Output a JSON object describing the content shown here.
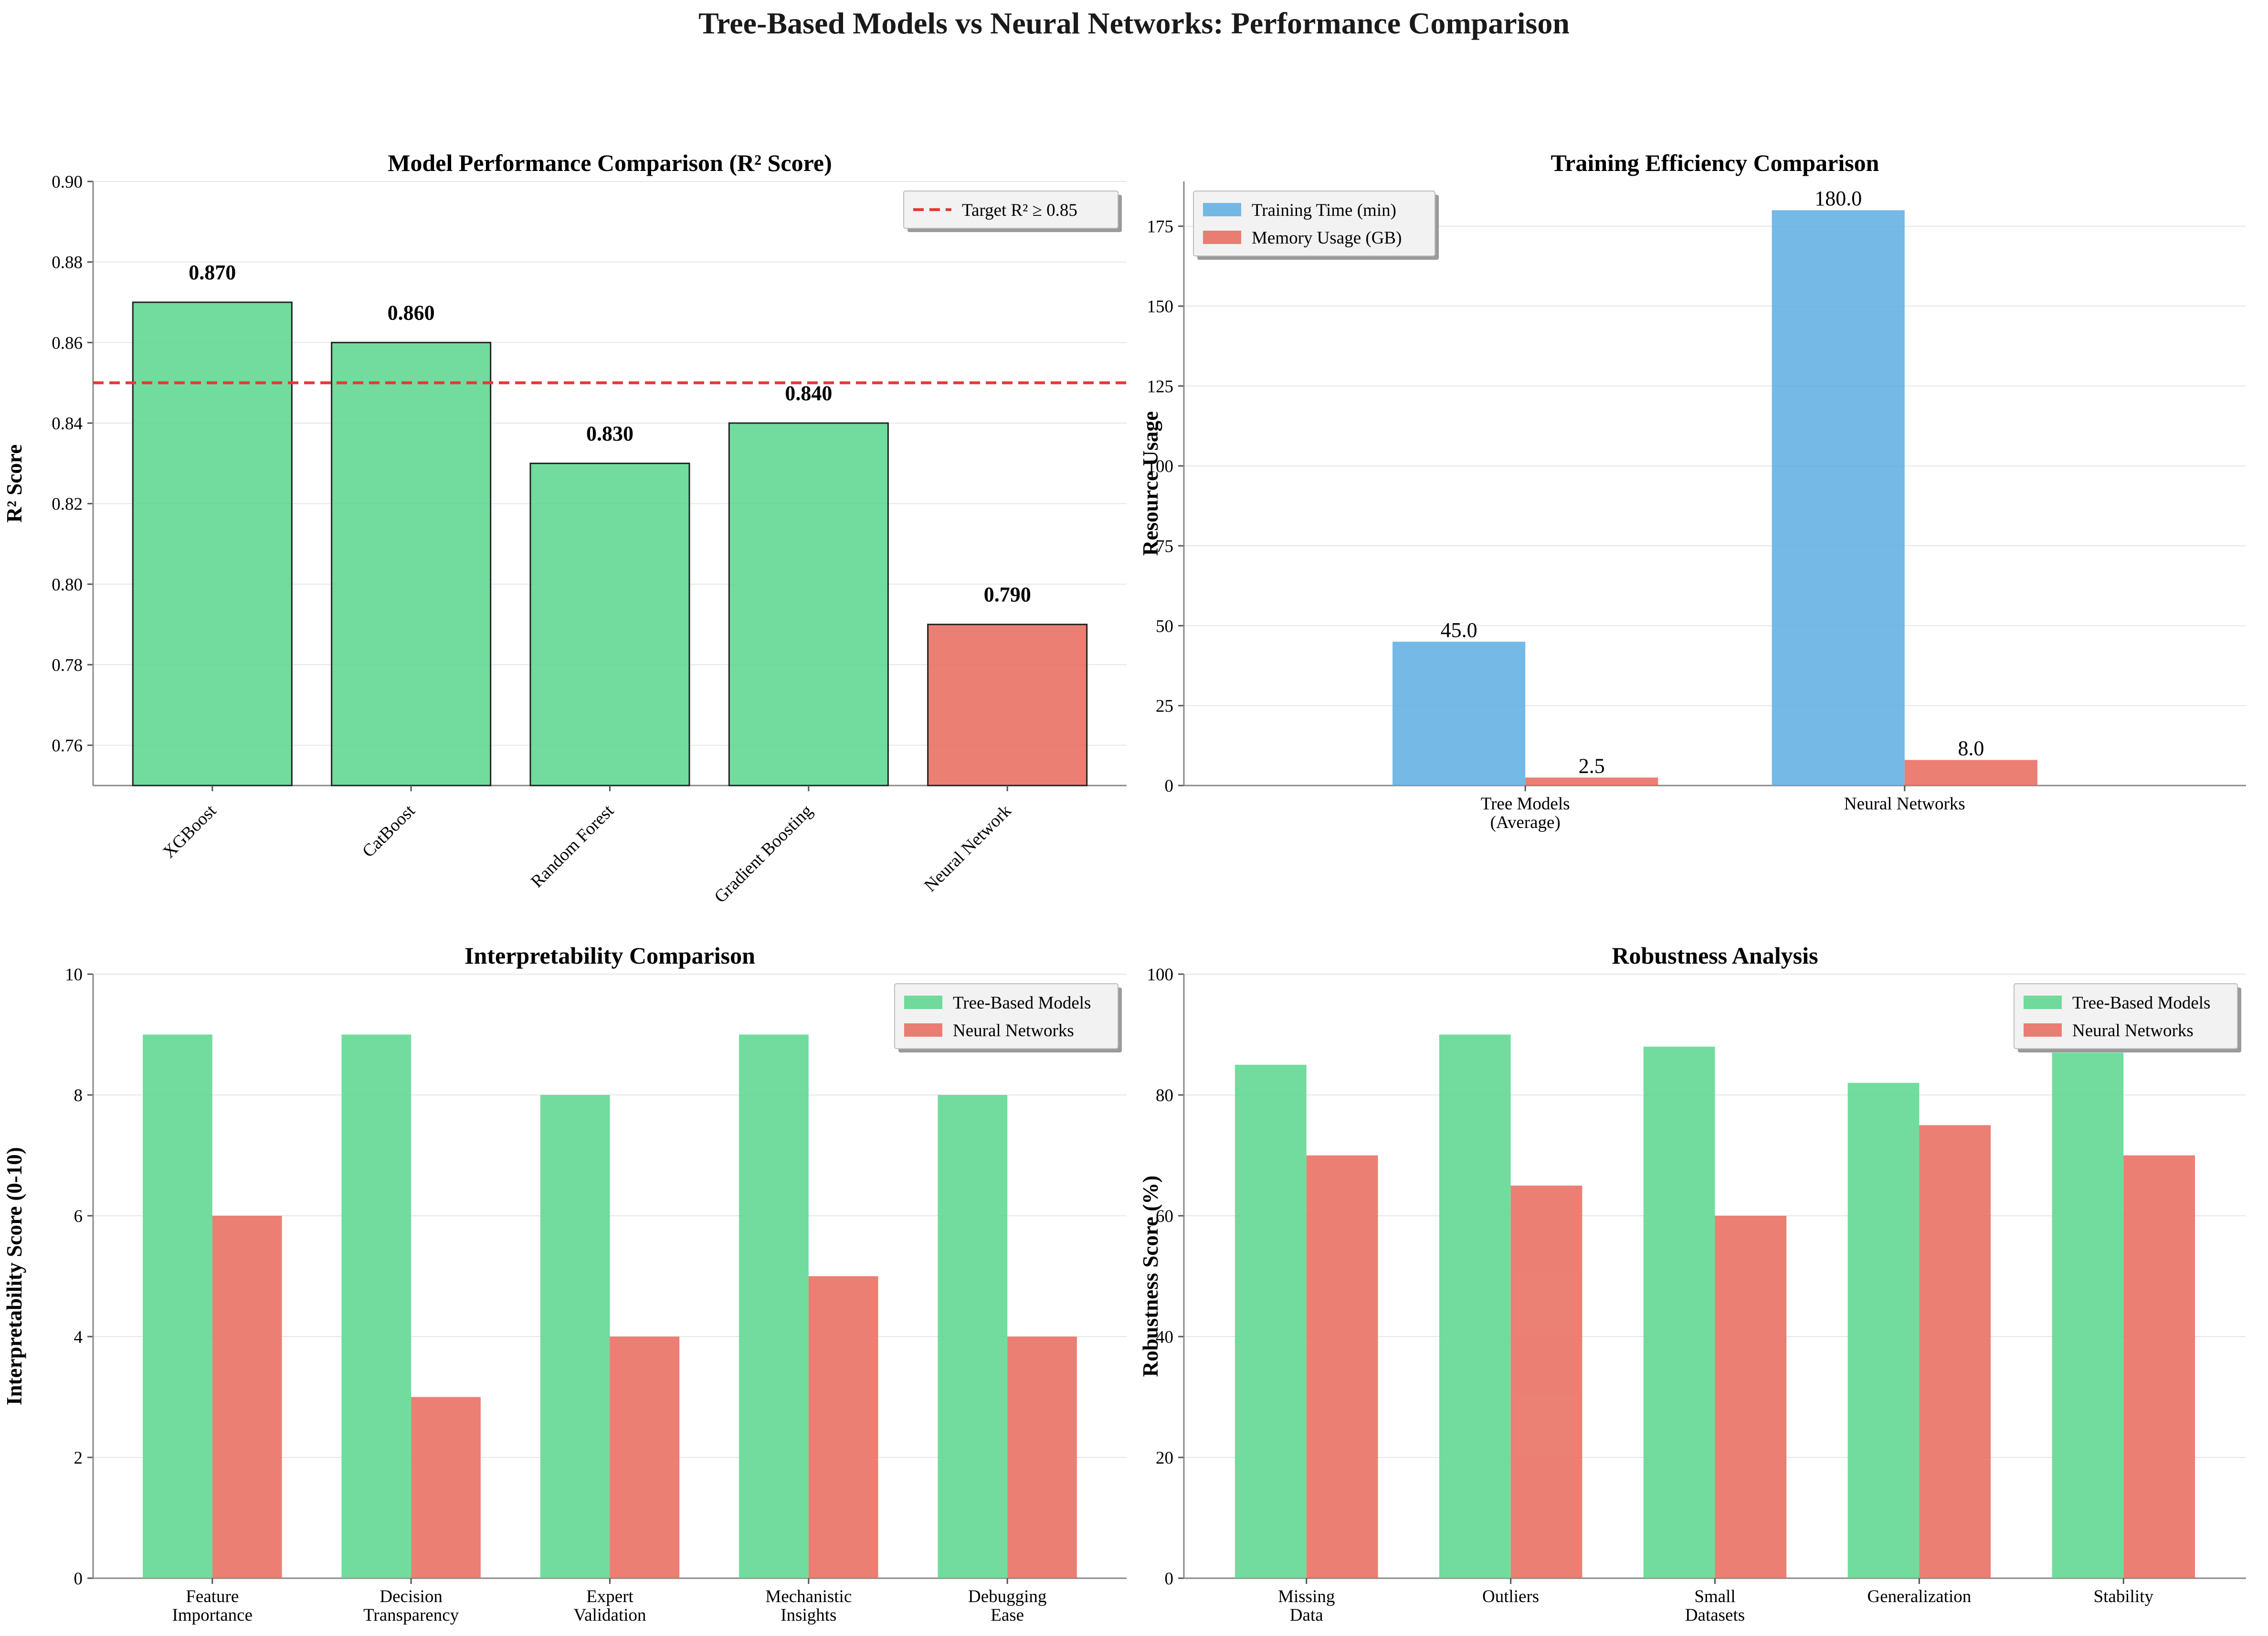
{
  "title": "Tree-Based Models vs Neural Networks: Performance Comparison",
  "colors": {
    "green": "#58d68d",
    "red": "#e8695c",
    "blue": "#5dade2",
    "target": "#e53935"
  },
  "chart_data": [
    {
      "type": "bar",
      "title": "Model Performance Comparison (R² Score)",
      "ylabel": "R² Score",
      "xlabel": "",
      "categories": [
        "XGBoost",
        "CatBoost",
        "Random Forest",
        "Gradient Boosting",
        "Neural Network"
      ],
      "values": [
        0.87,
        0.86,
        0.83,
        0.84,
        0.79
      ],
      "value_labels": [
        "0.870",
        "0.860",
        "0.830",
        "0.840",
        "0.790"
      ],
      "bar_colors": [
        "green",
        "green",
        "green",
        "green",
        "red"
      ],
      "ylim": [
        0.75,
        0.9
      ],
      "yticks": [
        0.76,
        0.78,
        0.8,
        0.82,
        0.84,
        0.86,
        0.88,
        0.9
      ],
      "ytick_labels": [
        "0.76",
        "0.78",
        "0.80",
        "0.82",
        "0.84",
        "0.86",
        "0.88",
        "0.90"
      ],
      "reference_line": {
        "y": 0.85,
        "label": "Target R² ≥ 0.85"
      },
      "legend": "top-right",
      "grid": true
    },
    {
      "type": "bar",
      "title": "Training Efficiency Comparison",
      "ylabel": "Resource Usage",
      "xlabel": "",
      "categories": [
        "Tree Models\n(Average)",
        "Neural Networks"
      ],
      "series": [
        {
          "name": "Training Time (min)",
          "color": "blue",
          "values": [
            45.0,
            180.0
          ],
          "value_labels": [
            "45.0",
            "180.0"
          ]
        },
        {
          "name": "Memory Usage (GB)",
          "color": "red",
          "values": [
            2.5,
            8.0
          ],
          "value_labels": [
            "2.5",
            "8.0"
          ]
        }
      ],
      "ylim": [
        0,
        189
      ],
      "yticks": [
        0,
        25,
        50,
        75,
        100,
        125,
        150,
        175
      ],
      "ytick_labels": [
        "0",
        "25",
        "50",
        "75",
        "100",
        "125",
        "150",
        "175"
      ],
      "legend": "top-left",
      "grid": true
    },
    {
      "type": "bar",
      "title": "Interpretability Comparison",
      "ylabel": "Interpretability Score (0-10)",
      "xlabel": "",
      "categories": [
        "Feature\nImportance",
        "Decision\nTransparency",
        "Expert\nValidation",
        "Mechanistic\nInsights",
        "Debugging\nEase"
      ],
      "series": [
        {
          "name": "Tree-Based Models",
          "color": "green",
          "values": [
            9,
            9,
            8,
            9,
            8
          ]
        },
        {
          "name": "Neural Networks",
          "color": "red",
          "values": [
            6,
            3,
            4,
            5,
            4
          ]
        }
      ],
      "ylim": [
        0,
        10
      ],
      "yticks": [
        0,
        2,
        4,
        6,
        8,
        10
      ],
      "ytick_labels": [
        "0",
        "2",
        "4",
        "6",
        "8",
        "10"
      ],
      "legend": "top-right",
      "grid": true
    },
    {
      "type": "bar",
      "title": "Robustness Analysis",
      "ylabel": "Robustness Score (%)",
      "xlabel": "",
      "categories": [
        "Missing\nData",
        "Outliers",
        "Small\nDatasets",
        "Generalization",
        "Stability"
      ],
      "series": [
        {
          "name": "Tree-Based Models",
          "color": "green",
          "values": [
            85,
            90,
            88,
            82,
            87
          ]
        },
        {
          "name": "Neural Networks",
          "color": "red",
          "values": [
            70,
            65,
            60,
            75,
            70
          ]
        }
      ],
      "ylim": [
        0,
        100
      ],
      "yticks": [
        0,
        20,
        40,
        60,
        80,
        100
      ],
      "ytick_labels": [
        "0",
        "20",
        "40",
        "60",
        "80",
        "100"
      ],
      "legend": "top-right",
      "grid": true
    }
  ]
}
